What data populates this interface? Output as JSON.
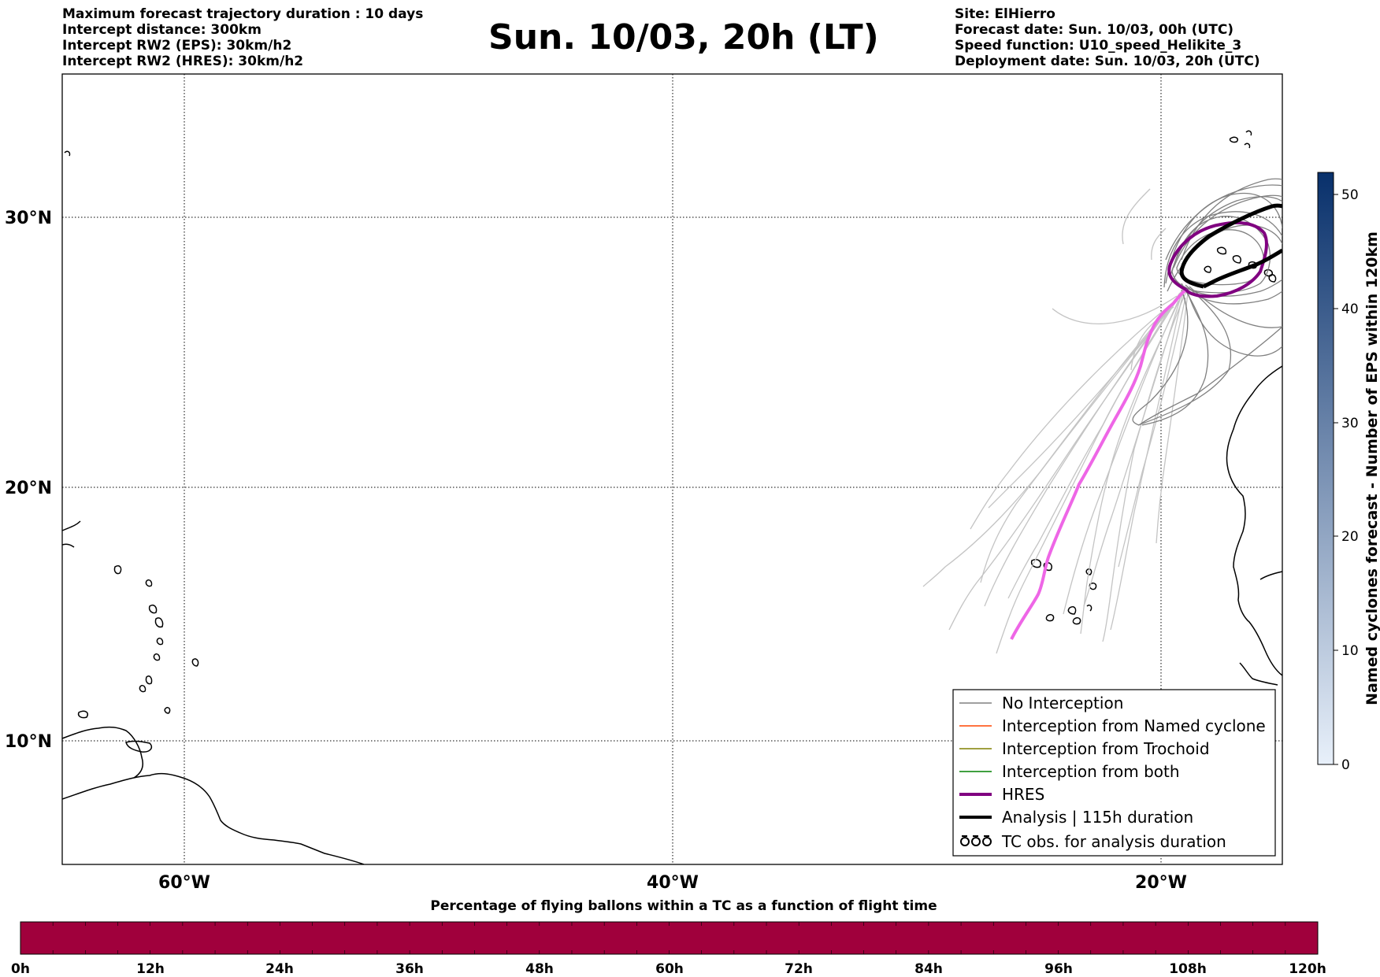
{
  "header": {
    "left_lines": [
      "Maximum forecast trajectory duration : 10 days",
      "Intercept distance: 300km",
      "Intercept RW2 (EPS):  30km/h2",
      "Intercept RW2 (HRES): 30km/h2"
    ],
    "title": "Sun. 10/03, 20h (LT)",
    "right_lines": [
      "Site: ElHierro",
      "Forecast date: Sun. 10/03, 00h (UTC)",
      "Speed function: U10_speed_Helikite_3",
      "Deployment date: Sun. 10/03, 20h (UTC)"
    ]
  },
  "map": {
    "lat_labels": [
      "30°N",
      "20°N",
      "10°N"
    ],
    "lon_labels": [
      "60°W",
      "40°W",
      "20°W"
    ],
    "colors": {
      "no_interception": "#808080",
      "eps_light": "#c4c4c4",
      "named_cyclone": "#ff4500",
      "trochoid": "#808000",
      "both": "#008000",
      "hres": "#800080",
      "hres_forecast": "#ee66e6",
      "analysis": "#000000"
    }
  },
  "legend": {
    "items": [
      {
        "label": "No Interception"
      },
      {
        "label": "Interception from Named cyclone"
      },
      {
        "label": "Interception from Trochoid"
      },
      {
        "label": "Interception from both"
      },
      {
        "label": "HRES"
      },
      {
        "label": "Analysis | 115h duration"
      },
      {
        "label": "TC obs. for analysis duration"
      }
    ]
  },
  "colorbar_right": {
    "label": "Named cyclones forecast - Number of EPS within 120km",
    "ticks": [
      "0",
      "10",
      "20",
      "30",
      "40",
      "50"
    ],
    "color_low": "#e8f0fa",
    "color_high": "#08306b"
  },
  "colorbar_bottom": {
    "title": "Percentage of flying ballons within a TC as a function of flight time",
    "ticks": [
      "0h",
      "12h",
      "24h",
      "36h",
      "48h",
      "60h",
      "72h",
      "84h",
      "96h",
      "108h",
      "120h"
    ],
    "fill_color": "#a0003c"
  }
}
